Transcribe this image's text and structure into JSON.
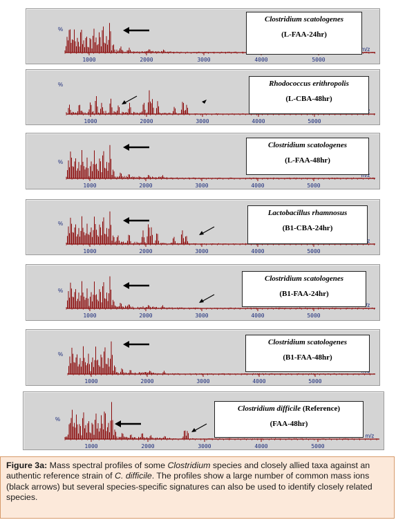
{
  "panels": [
    {
      "species": "Clostridium scatologenes",
      "species_suffix": "",
      "condition": "(L-FAA-24hr)",
      "axis_label": "%",
      "mz_label": "m/z",
      "ticks": [
        "1000",
        "2000",
        "3000",
        "4000",
        "5000"
      ]
    },
    {
      "species": "Rhodococcus erithropolis",
      "species_suffix": "",
      "condition": "(L-CBA-48hr)",
      "axis_label": "%",
      "mz_label": "m/z",
      "ticks": [
        "1000",
        "2000",
        "3000",
        "4000",
        "5000"
      ]
    },
    {
      "species": "Clostridium scatologenes",
      "species_suffix": "",
      "condition": "(L-FAA-48hr)",
      "axis_label": "%",
      "mz_label": "m/z",
      "ticks": [
        "1000",
        "2000",
        "3000",
        "4000",
        "5000"
      ]
    },
    {
      "species": "Lactobacillus rhamnosus",
      "species_suffix": "",
      "condition": "(B1-CBA-24hr)",
      "axis_label": "%",
      "mz_label": "m/z",
      "ticks": [
        "1000",
        "2000",
        "3000",
        "4000",
        "5000"
      ]
    },
    {
      "species": "Clostridium scatologenes",
      "species_suffix": "",
      "condition": "(B1-FAA-24hr)",
      "axis_label": "%",
      "mz_label": "m/z",
      "ticks": [
        "1000",
        "2000",
        "3000",
        "4000",
        "5000"
      ]
    },
    {
      "species": "Clostridium scatologenes",
      "species_suffix": "",
      "condition": "(B1-FAA-48hr)",
      "axis_label": "%",
      "mz_label": "m/z",
      "ticks": [
        "1000",
        "2000",
        "3000",
        "4000",
        "5000"
      ]
    },
    {
      "species": "Clostridium difficile",
      "species_suffix": " (Reference)",
      "condition": "(FAA-48hr)",
      "axis_label": "%",
      "mz_label": "m/z",
      "ticks": [
        "1000",
        "2000",
        "3000",
        "4000",
        "5000"
      ]
    }
  ],
  "caption": {
    "figure_label": "Figure 3a:",
    "t1": " Mass spectral profiles of some ",
    "i1": "Clostridium",
    "t2": " species and closely allied taxa against an authentic reference strain of ",
    "i2": "C. difficile",
    "t3": ". The profiles show a large number of common mass ions (black arrows) but several species-specific signatures can also be used to identify closely related species."
  },
  "colors": {
    "spectrum": "#8b0a0a",
    "panel_bg": "#d4d4d4",
    "caption_bg": "#fce9da",
    "caption_border": "#d69a6a"
  }
}
